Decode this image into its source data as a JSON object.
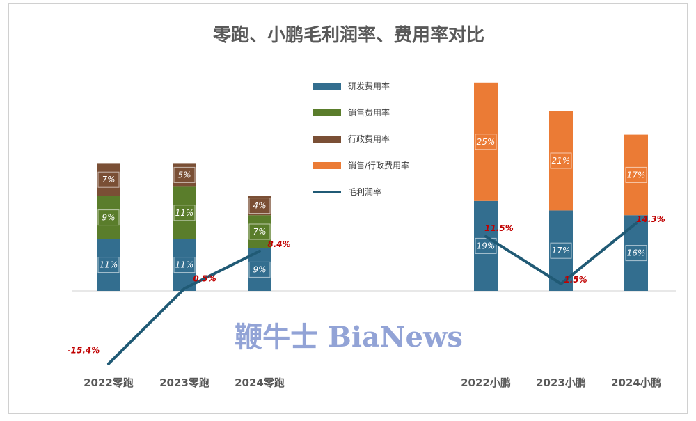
{
  "watermark": "鞭牛士 BiaNews",
  "colors": {
    "rd": "#336e8f",
    "sales": "#5a7d2b",
    "admin": "#7a4f35",
    "sales_admin": "#eb7b35",
    "margin_line": "#205a75",
    "line_label": "#c00000",
    "axis": "#d0d0d0"
  },
  "chart_data": {
    "type": "bar",
    "title": "零跑、小鹏毛利润率、费用率对比",
    "categories": [
      "2022零跑",
      "2023零跑",
      "2024零跑",
      "2022小鹏",
      "2023小鹏",
      "2024小鹏"
    ],
    "stacked": true,
    "series": [
      {
        "name": "研发费用率",
        "color": "#336e8f",
        "values": [
          11,
          11,
          9,
          19,
          17,
          16
        ],
        "labels": [
          "11%",
          "11%",
          "9%",
          "19%",
          "17%",
          "16%"
        ]
      },
      {
        "name": "销售费用率",
        "color": "#5a7d2b",
        "values": [
          9,
          11,
          7,
          null,
          null,
          null
        ],
        "labels": [
          "9%",
          "11%",
          "7%",
          "",
          "",
          ""
        ]
      },
      {
        "name": "行政费用率",
        "color": "#7a4f35",
        "values": [
          7,
          5,
          4,
          null,
          null,
          null
        ],
        "labels": [
          "7%",
          "5%",
          "4%",
          "",
          "",
          ""
        ]
      },
      {
        "name": "销售/行政费用率",
        "color": "#eb7b35",
        "values": [
          null,
          null,
          null,
          25,
          21,
          17
        ],
        "labels": [
          "",
          "",
          "",
          "25%",
          "21%",
          "17%"
        ]
      }
    ],
    "line_groups": [
      {
        "name": "毛利润率",
        "color": "#205a75",
        "indices": [
          0,
          1,
          2
        ],
        "values": [
          -15.4,
          0.5,
          8.4
        ],
        "labels": [
          "-15.4%",
          "0.5%",
          "8.4%"
        ]
      },
      {
        "name": "毛利润率",
        "color": "#205a75",
        "indices": [
          3,
          4,
          5
        ],
        "values": [
          11.5,
          1.5,
          14.3
        ],
        "labels": [
          "11.5%",
          "1.5%",
          "14.3%"
        ]
      }
    ],
    "legend": [
      "研发费用率",
      "销售费用率",
      "行政费用率",
      "销售/行政费用率",
      "毛利润率"
    ],
    "legend_position": "top-center",
    "grid": false
  }
}
